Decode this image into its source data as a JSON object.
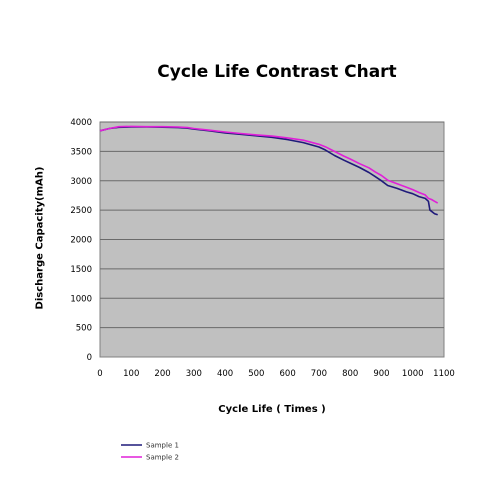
{
  "chart_data": {
    "type": "line",
    "title": "Cycle Life Contrast Chart",
    "xlabel": "Cycle Life ( Times )",
    "ylabel": "Discharge Capacity(mAh)",
    "xlim": [
      0,
      1100
    ],
    "ylim": [
      0,
      4000
    ],
    "x_ticks": [
      "0",
      "100",
      "200",
      "300",
      "400",
      "500",
      "600",
      "700",
      "800",
      "900",
      "1000",
      "1100"
    ],
    "y_ticks": [
      "0",
      "500",
      "1000",
      "1500",
      "2000",
      "2500",
      "3000",
      "3500",
      "4000"
    ],
    "grid": "horizontal",
    "legend_position": "bottom-left",
    "background_color": "#c0c0c0",
    "series": [
      {
        "name": "Sample 1",
        "color": "#1f1a7a",
        "x": [
          0,
          30,
          60,
          100,
          150,
          200,
          250,
          280,
          300,
          350,
          400,
          450,
          500,
          550,
          600,
          650,
          700,
          720,
          750,
          780,
          800,
          830,
          860,
          880,
          900,
          920,
          950,
          980,
          1000,
          1020,
          1040,
          1050,
          1055,
          1060,
          1070,
          1080
        ],
        "y": [
          3850,
          3890,
          3910,
          3915,
          3915,
          3912,
          3905,
          3895,
          3880,
          3850,
          3815,
          3790,
          3765,
          3740,
          3700,
          3650,
          3575,
          3525,
          3430,
          3350,
          3300,
          3225,
          3140,
          3070,
          3000,
          2920,
          2870,
          2810,
          2780,
          2730,
          2700,
          2650,
          2500,
          2480,
          2440,
          2420
        ]
      },
      {
        "name": "Sample 2",
        "color": "#e020d8",
        "x": [
          0,
          30,
          60,
          100,
          150,
          200,
          250,
          280,
          300,
          350,
          400,
          450,
          500,
          550,
          600,
          650,
          700,
          720,
          750,
          780,
          800,
          830,
          860,
          880,
          900,
          920,
          950,
          980,
          1000,
          1020,
          1040,
          1050,
          1060,
          1070,
          1080
        ],
        "y": [
          3850,
          3890,
          3920,
          3925,
          3920,
          3920,
          3915,
          3905,
          3890,
          3860,
          3830,
          3805,
          3780,
          3760,
          3730,
          3690,
          3620,
          3580,
          3500,
          3420,
          3370,
          3290,
          3220,
          3150,
          3090,
          3010,
          2950,
          2890,
          2850,
          2800,
          2760,
          2700,
          2680,
          2650,
          2620
        ]
      }
    ]
  }
}
